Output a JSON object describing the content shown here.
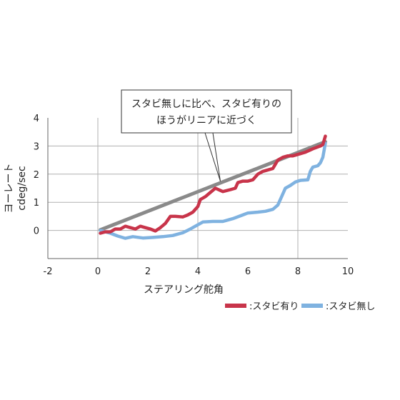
{
  "chart_data": {
    "type": "line",
    "title": "",
    "xlabel": "ステアリング舵角",
    "ylabel_lines": [
      "ヨーレート",
      "cdeg/sec"
    ],
    "xlim": [
      -2,
      10
    ],
    "ylim": [
      -1,
      4
    ],
    "x_ticks": [
      -2,
      0,
      2,
      4,
      6,
      8,
      10
    ],
    "y_ticks": [
      0,
      1,
      2,
      3,
      4
    ],
    "grid": {
      "vertical": [
        0,
        4,
        8
      ],
      "horizontal": [
        0,
        1,
        2,
        3
      ]
    },
    "legend_placement": "bottom-right",
    "annotation": {
      "lines": [
        "スタビ無しに比べ、スタビ有りの",
        "ほうがリニアに近づく"
      ],
      "target": {
        "x": 4.9,
        "y": 1.75
      }
    },
    "reference_line": {
      "color": "#8a8a8a",
      "points": [
        [
          0.1,
          0.02
        ],
        [
          9.1,
          3.15
        ]
      ]
    },
    "series": [
      {
        "name": ":スタビ有り",
        "color": "#c8344a",
        "points": [
          [
            0.1,
            -0.1
          ],
          [
            0.3,
            -0.05
          ],
          [
            0.5,
            -0.05
          ],
          [
            0.7,
            0.05
          ],
          [
            0.9,
            0.05
          ],
          [
            1.1,
            0.15
          ],
          [
            1.3,
            0.1
          ],
          [
            1.5,
            0.05
          ],
          [
            1.7,
            0.15
          ],
          [
            1.9,
            0.1
          ],
          [
            2.1,
            0.05
          ],
          [
            2.3,
            -0.02
          ],
          [
            2.5,
            0.1
          ],
          [
            2.7,
            0.25
          ],
          [
            2.9,
            0.5
          ],
          [
            3.1,
            0.5
          ],
          [
            3.4,
            0.48
          ],
          [
            3.6,
            0.55
          ],
          [
            3.8,
            0.65
          ],
          [
            4.0,
            0.85
          ],
          [
            4.1,
            1.1
          ],
          [
            4.3,
            1.2
          ],
          [
            4.5,
            1.35
          ],
          [
            4.7,
            1.5
          ],
          [
            5.0,
            1.38
          ],
          [
            5.3,
            1.45
          ],
          [
            5.5,
            1.5
          ],
          [
            5.6,
            1.7
          ],
          [
            5.8,
            1.75
          ],
          [
            6.0,
            1.75
          ],
          [
            6.2,
            1.8
          ],
          [
            6.4,
            2.0
          ],
          [
            6.6,
            2.1
          ],
          [
            6.8,
            2.15
          ],
          [
            7.0,
            2.2
          ],
          [
            7.2,
            2.5
          ],
          [
            7.4,
            2.6
          ],
          [
            7.6,
            2.65
          ],
          [
            7.8,
            2.65
          ],
          [
            8.0,
            2.7
          ],
          [
            8.3,
            2.78
          ],
          [
            8.6,
            2.9
          ],
          [
            8.9,
            3.0
          ],
          [
            9.0,
            3.05
          ],
          [
            9.1,
            3.35
          ]
        ]
      },
      {
        "name": ":スタビ無し",
        "color": "#7fb2e0",
        "points": [
          [
            0.1,
            0.0
          ],
          [
            0.3,
            -0.05
          ],
          [
            0.5,
            -0.1
          ],
          [
            0.8,
            -0.2
          ],
          [
            1.1,
            -0.28
          ],
          [
            1.4,
            -0.22
          ],
          [
            1.8,
            -0.27
          ],
          [
            2.2,
            -0.25
          ],
          [
            2.6,
            -0.22
          ],
          [
            3.0,
            -0.18
          ],
          [
            3.4,
            -0.08
          ],
          [
            3.7,
            0.05
          ],
          [
            4.0,
            0.2
          ],
          [
            4.2,
            0.3
          ],
          [
            4.6,
            0.32
          ],
          [
            5.0,
            0.32
          ],
          [
            5.4,
            0.42
          ],
          [
            5.8,
            0.55
          ],
          [
            6.0,
            0.62
          ],
          [
            6.4,
            0.65
          ],
          [
            6.7,
            0.68
          ],
          [
            7.0,
            0.75
          ],
          [
            7.2,
            0.9
          ],
          [
            7.4,
            1.3
          ],
          [
            7.5,
            1.5
          ],
          [
            7.7,
            1.6
          ],
          [
            7.9,
            1.72
          ],
          [
            8.1,
            1.78
          ],
          [
            8.4,
            1.8
          ],
          [
            8.5,
            2.1
          ],
          [
            8.6,
            2.25
          ],
          [
            8.8,
            2.3
          ],
          [
            8.9,
            2.4
          ],
          [
            9.0,
            2.6
          ],
          [
            9.1,
            3.1
          ]
        ]
      }
    ]
  }
}
